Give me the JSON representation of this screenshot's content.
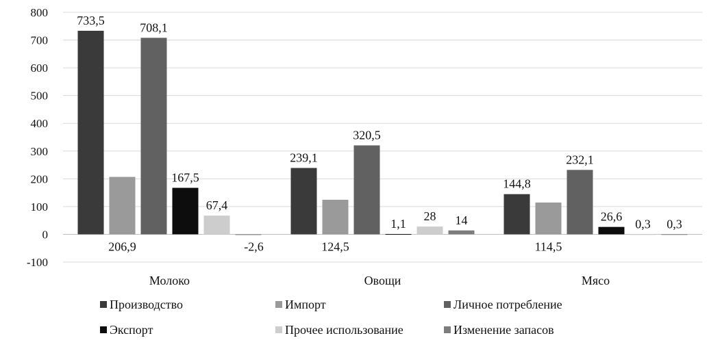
{
  "chart_data": {
    "type": "bar",
    "title": "",
    "xlabel": "",
    "ylabel": "",
    "ylim": [
      -100,
      800
    ],
    "yticks": [
      -100,
      0,
      100,
      200,
      300,
      400,
      500,
      600,
      700,
      800
    ],
    "grid": true,
    "legend_position": "bottom",
    "categories": [
      "Молоко",
      "Овощи",
      "Мясо"
    ],
    "series": [
      {
        "name": "Производство",
        "color": "#3a3a3a",
        "values": [
          733.5,
          239.1,
          144.8
        ],
        "labels": [
          "733,5",
          "239,1",
          "144,8"
        ]
      },
      {
        "name": "Импорт",
        "color": "#9a9a9a",
        "values": [
          206.9,
          124.5,
          114.5
        ],
        "labels": [
          "206,9",
          "124,5",
          "114,5"
        ]
      },
      {
        "name": "Личное потребление",
        "color": "#616161",
        "values": [
          708.1,
          320.5,
          232.1
        ],
        "labels": [
          "708,1",
          "320,5",
          "232,1"
        ]
      },
      {
        "name": "Экспорт",
        "color": "#0d0d0d",
        "values": [
          167.5,
          1.1,
          26.6
        ],
        "labels": [
          "167,5",
          "1,1",
          "26,6"
        ]
      },
      {
        "name": "Прочее использование",
        "color": "#cdcdcd",
        "values": [
          67.4,
          28,
          0.3
        ],
        "labels": [
          "67,4",
          "28",
          "0,3"
        ]
      },
      {
        "name": "Изменение запасов",
        "color": "#7d7d7d",
        "values": [
          -2.6,
          14,
          0.3
        ],
        "labels": [
          "-2,6",
          "14",
          "0,3"
        ]
      }
    ]
  }
}
